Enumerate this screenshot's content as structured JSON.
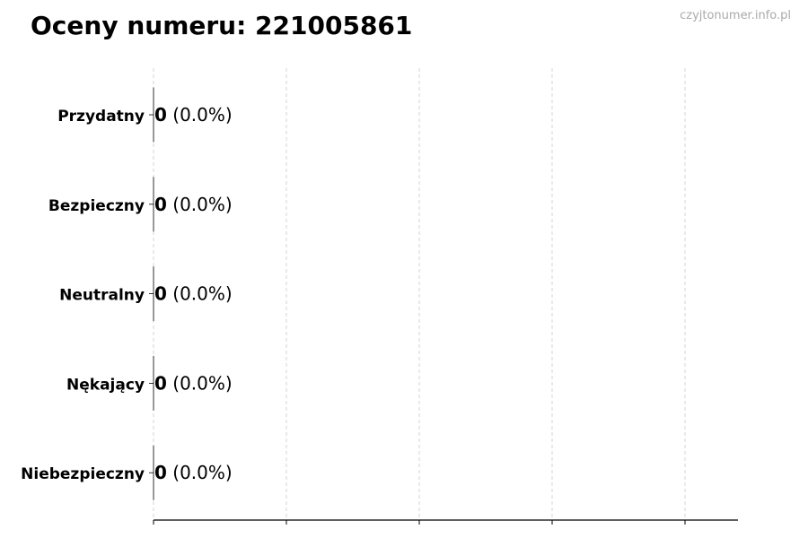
{
  "chart_data": {
    "type": "bar",
    "orientation": "horizontal",
    "title": "Oceny numeru: 221005861",
    "categories": [
      "Przydatny",
      "Bezpieczny",
      "Neutralny",
      "Nękający",
      "Niebezpieczny"
    ],
    "values": [
      0,
      0,
      0,
      0,
      0
    ],
    "data_labels": [
      {
        "count": "0",
        "percent": "(0.0%)"
      },
      {
        "count": "0",
        "percent": "(0.0%)"
      },
      {
        "count": "0",
        "percent": "(0.0%)"
      },
      {
        "count": "0",
        "percent": "(0.0%)"
      },
      {
        "count": "0",
        "percent": "(0.0%)"
      }
    ],
    "xlabel": "",
    "ylabel": "",
    "x_tick_labels_shown": false,
    "grid": "vertical dashed",
    "colors": {
      "grid": "#cccccc",
      "bar_edge": "#333333",
      "axis": "#000000"
    }
  },
  "watermark": "czyjtonumer.info.pl"
}
